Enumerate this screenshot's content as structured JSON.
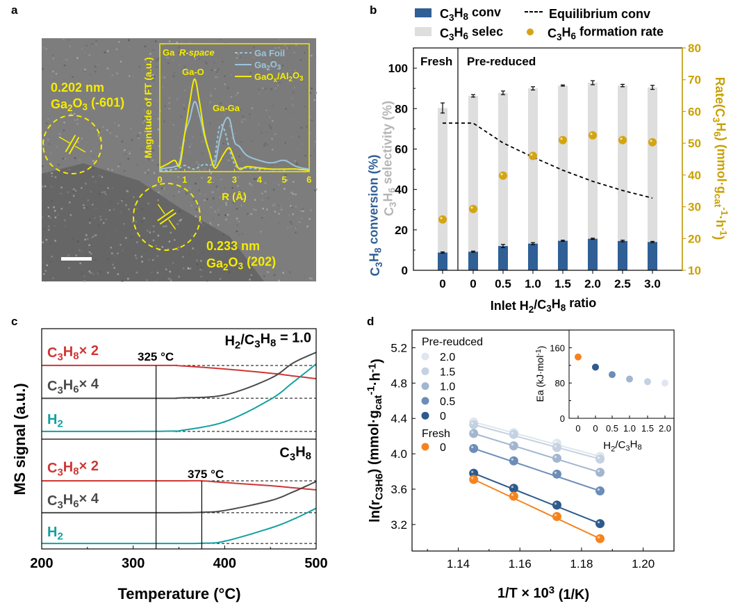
{
  "panel_labels": {
    "a": "a",
    "b": "b",
    "c": "c",
    "d": "d"
  },
  "colors": {
    "conv": "#2f5f95",
    "selec": "#dedede",
    "rate": "#d4a414",
    "right_axis": "#c9a000",
    "c3h8": "#d03535",
    "c3h6": "#4a4a4a",
    "h2": "#12a0a0",
    "tem_annot": "#f5ec00",
    "ga_foil": "#9cc4dc",
    "ga2o3": "#9cc4dc",
    "gaox": "#f5ec00",
    "d_2.0": "#dfe6ef",
    "d_1.5": "#c4d1e1",
    "d_1.0": "#a2b6cf",
    "d_0.5": "#6b8db8",
    "d_0": "#2e5a8c",
    "d_fresh": "#f5841f"
  },
  "panel_a": {
    "annotations": [
      {
        "text": "0.202 nm"
      },
      {
        "text": "Ga_{2}O_{3} (-601)"
      },
      {
        "text": "0.233 nm"
      },
      {
        "text": "Ga_{2}O_{3} (202)"
      }
    ],
    "scale_bar": true,
    "inset": {
      "type": "line",
      "title_element": "Ga",
      "title_space": "R-space",
      "xlabel": "R (Å)",
      "ylabel": "Magnitude of FT (a.u.)",
      "xlim": [
        0,
        6
      ],
      "xticks": [
        0,
        1,
        2,
        3,
        4,
        5,
        6
      ],
      "peak_labels": [
        "Ga-O",
        "Ga-Ga"
      ],
      "x": [
        0,
        0.3,
        0.6,
        0.8,
        1.0,
        1.2,
        1.4,
        1.6,
        1.8,
        2.0,
        2.2,
        2.4,
        2.6,
        2.8,
        3.0,
        3.2,
        3.5,
        4.0,
        4.5,
        5.0,
        5.5,
        6.0
      ],
      "series": [
        {
          "name": "Ga Foil",
          "style": "dashed",
          "values": [
            0.01,
            0.01,
            0.02,
            0.03,
            0.05,
            0.03,
            0.02,
            0.04,
            0.06,
            0.05,
            0.1,
            0.36,
            0.33,
            0.18,
            0.06,
            0.03,
            0.03,
            0.02,
            0.02,
            0.02,
            0.02,
            0.01
          ]
        },
        {
          "name": "Ga_{2}O_{3}",
          "style": "solid",
          "values": [
            0.02,
            0.03,
            0.04,
            0.08,
            0.3,
            0.42,
            0.56,
            0.45,
            0.28,
            0.15,
            0.05,
            0.25,
            0.4,
            0.42,
            0.24,
            0.2,
            0.13,
            0.09,
            0.07,
            0.09,
            0.04,
            0.02
          ]
        },
        {
          "name": "GaO_{x}/Al_{2}O_{3}",
          "style": "solid",
          "values": [
            0.03,
            0.06,
            0.09,
            0.05,
            0.3,
            0.55,
            0.74,
            0.55,
            0.3,
            0.15,
            0.03,
            0.08,
            0.15,
            0.19,
            0.1,
            0.02,
            0.04,
            0.03,
            0.02,
            0.02,
            0.02,
            0.01
          ]
        }
      ]
    }
  },
  "chart_data": [
    {
      "panel": "b",
      "type": "bar",
      "xlabel": "Inlet H_{2}/C_{3}H_{8} ratio",
      "ylabel_left_1": "C_{3}H_{8} conversion (%)",
      "ylabel_left_2": "C_{3}H_{6} selectivity (%)",
      "ylabel_right": "Rate(C_{3}H_{6}) (mmol·g_{cat}^{-1}·h^{-1})",
      "ylim": [
        0,
        110
      ],
      "yticks": [
        0,
        20,
        40,
        60,
        80,
        100
      ],
      "ylim_right": [
        10,
        80
      ],
      "yticks_right": [
        10,
        20,
        30,
        40,
        50,
        60,
        70,
        80
      ],
      "groups": [
        "Fresh",
        "Pre-reduced"
      ],
      "categories": [
        "0",
        "0",
        "0.5",
        "1.0",
        "1.5",
        "2.0",
        "2.5",
        "3.0"
      ],
      "legend": [
        "C_{3}H_{8} conv",
        "Equilibrium conv",
        "C_{3}H_{6} selec",
        "C_{3}H_{6} formation rate"
      ],
      "legend_position": "top",
      "series": [
        {
          "name": "C_{3}H_{8} conv",
          "kind": "bar",
          "values": [
            8.8,
            9.2,
            12.0,
            13.2,
            14.6,
            15.6,
            14.5,
            14.0
          ],
          "errors": [
            0.3,
            0.3,
            0.8,
            0.5,
            0.3,
            0.3,
            0.4,
            0.3
          ]
        },
        {
          "name": "C_{3}H_{6} selec",
          "kind": "bar",
          "values": [
            80.3,
            86.3,
            87.8,
            90.0,
            91.4,
            92.8,
            91.4,
            90.5
          ],
          "errors": [
            2.5,
            0.6,
            0.9,
            0.8,
            0.3,
            1.0,
            0.6,
            1.0
          ]
        },
        {
          "name": "C_{3}H_{6} formation rate",
          "kind": "scatter",
          "axis": "right",
          "values": [
            26.0,
            29.3,
            39.8,
            46.0,
            51.0,
            52.5,
            51.0,
            50.3
          ]
        },
        {
          "name": "Equilibrium conv",
          "kind": "line",
          "style": "dashed",
          "values": [
            72.8,
            72.8,
            63.0,
            56.0,
            49.5,
            44.0,
            39.5,
            35.7
          ]
        }
      ]
    },
    {
      "panel": "c",
      "type": "line",
      "xlabel": "Temperature (°C)",
      "ylabel": "MS signal (a.u.)",
      "xlim": [
        200,
        500
      ],
      "xticks": [
        200,
        300,
        400,
        500
      ],
      "subplots": [
        {
          "title": "H_{2}/C_{3}H_{8} = 1.0",
          "onset_label": "325 °C",
          "onset": 325,
          "x": [
            200,
            300,
            345,
            350,
            400,
            450,
            475,
            500
          ],
          "series": [
            {
              "name": "C_{3}H_{8}× 2",
              "key": "c3h8",
              "values": [
                66.7,
                66.7,
                66.7,
                66.5,
                63.5,
                59.7,
                57.2,
                54.7
              ]
            },
            {
              "name": "C_{3}H_{6}× 4",
              "key": "c3h6",
              "values": [
                37,
                37,
                37,
                37.3,
                40,
                55,
                69,
                78.6
              ]
            },
            {
              "name": "H_{2}",
              "key": "h2",
              "values": [
                7,
                7,
                7.3,
                7.5,
                15.7,
                36,
                51.6,
                68
              ]
            }
          ]
        },
        {
          "title": "C_{3}H_{8}",
          "onset_label": "375 °C",
          "onset": 375,
          "x": [
            200,
            300,
            350,
            375,
            400,
            450,
            475,
            500
          ],
          "series": [
            {
              "name": "C_{3}H_{8}× 2",
              "key": "c3h8",
              "values": [
                62,
                62,
                62,
                62,
                60.5,
                57.6,
                55.7,
                53.8
              ]
            },
            {
              "name": "C_{3}H_{6}× 4",
              "key": "c3h6",
              "values": [
                33,
                33,
                33,
                33.4,
                35,
                44,
                52,
                61.4
              ]
            },
            {
              "name": "H_{2}",
              "key": "h2",
              "values": [
                5,
                5,
                5,
                5.2,
                7,
                19,
                27,
                37
              ]
            }
          ]
        }
      ]
    },
    {
      "panel": "d",
      "type": "scatter",
      "xlabel": "1/T × 10^{3} (1/K)",
      "ylabel": "ln(r_{C3H6}) (mmol·g_{cat}^{-1}·h^{-1})",
      "xlim": [
        1.125,
        1.21
      ],
      "xticks": [
        1.14,
        1.16,
        1.18,
        1.2
      ],
      "ylim": [
        2.9,
        5.4
      ],
      "yticks": [
        3.2,
        3.6,
        4.0,
        4.4,
        4.8,
        5.2
      ],
      "legend_groups": [
        "Pre-reudced",
        "Fresh"
      ],
      "legend_position": "top-left",
      "x": [
        1.145,
        1.158,
        1.172,
        1.186
      ],
      "series": [
        {
          "group": "Pre-reudced",
          "name": "2.0",
          "color_key": "d_2.0",
          "values": [
            4.36,
            4.24,
            4.12,
            3.97
          ]
        },
        {
          "group": "Pre-reudced",
          "name": "1.5",
          "color_key": "d_1.5",
          "values": [
            4.33,
            4.22,
            4.07,
            3.94
          ]
        },
        {
          "group": "Pre-reudced",
          "name": "1.0",
          "color_key": "d_1.0",
          "values": [
            4.23,
            4.09,
            3.95,
            3.79
          ]
        },
        {
          "group": "Pre-reudced",
          "name": "0.5",
          "color_key": "d_0.5",
          "values": [
            4.06,
            3.92,
            3.77,
            3.58
          ]
        },
        {
          "group": "Pre-reudced",
          "name": "0",
          "color_key": "d_0",
          "values": [
            3.78,
            3.61,
            3.42,
            3.21
          ]
        },
        {
          "group": "Fresh",
          "name": "0",
          "color_key": "d_fresh",
          "values": [
            3.71,
            3.52,
            3.29,
            3.04
          ]
        }
      ],
      "inset": {
        "type": "scatter",
        "xlabel": "H_{2}/C_{3}H_{8}",
        "ylabel": "Ea (kJ·mol^{-1})",
        "ylim": [
          0,
          200
        ],
        "yticks": [
          0,
          80,
          160
        ],
        "categories": [
          "0",
          "0",
          "0.5",
          "1.0",
          "1.5",
          "2.0"
        ],
        "color_keys": [
          "d_fresh",
          "d_0",
          "d_0.5",
          "d_1.0",
          "d_1.5",
          "d_2.0"
        ],
        "values": [
          139,
          116,
          99,
          89,
          83,
          80
        ]
      }
    }
  ]
}
